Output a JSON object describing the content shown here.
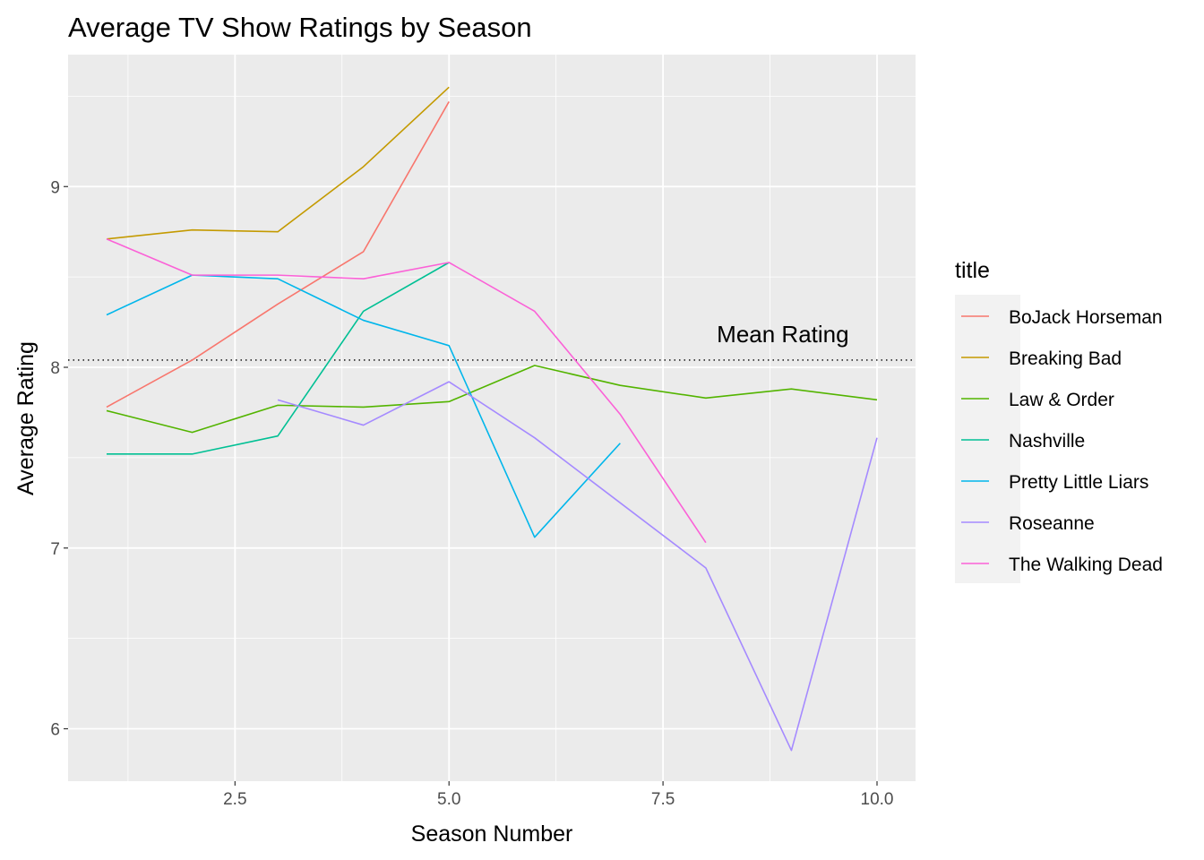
{
  "chart_data": {
    "type": "line",
    "title": "Average TV Show Ratings by Season",
    "xlabel": "Season Number",
    "ylabel": "Average Rating",
    "xlim": [
      0.55,
      10.45
    ],
    "ylim": [
      5.71,
      9.73
    ],
    "x_ticks": [
      2.5,
      5.0,
      7.5,
      10.0
    ],
    "x_tick_labels": [
      "2.5",
      "5.0",
      "7.5",
      "10.0"
    ],
    "x_minor": [
      1.25,
      3.75,
      6.25,
      8.75
    ],
    "y_ticks": [
      6,
      7,
      8,
      9
    ],
    "y_tick_labels": [
      "6",
      "7",
      "8",
      "9"
    ],
    "y_minor": [
      6.5,
      7.5,
      8.5,
      9.5
    ],
    "grid": true,
    "legend_position": "right",
    "legend_title": "title",
    "reference_line": {
      "y": 8.04,
      "style": "dotted",
      "label": "Mean Rating",
      "label_x": 8.9
    },
    "series": [
      {
        "name": "BoJack Horseman",
        "color": "#F8766D",
        "x": [
          1,
          2,
          3,
          4,
          5
        ],
        "y": [
          7.78,
          8.04,
          8.35,
          8.64,
          9.47
        ]
      },
      {
        "name": "Breaking Bad",
        "color": "#C49A00",
        "x": [
          1,
          2,
          3,
          4,
          5
        ],
        "y": [
          8.71,
          8.76,
          8.75,
          9.11,
          9.55
        ]
      },
      {
        "name": "Law & Order",
        "color": "#53B400",
        "x": [
          1,
          2,
          3,
          4,
          5,
          6,
          7,
          8,
          9,
          10
        ],
        "y": [
          7.76,
          7.64,
          7.79,
          7.78,
          7.81,
          8.01,
          7.9,
          7.83,
          7.88,
          7.82
        ]
      },
      {
        "name": "Nashville",
        "color": "#00C094",
        "x": [
          1,
          2,
          3,
          4,
          5
        ],
        "y": [
          7.52,
          7.52,
          7.62,
          8.31,
          8.58
        ]
      },
      {
        "name": "Pretty Little Liars",
        "color": "#00B6EB",
        "x": [
          1,
          2,
          3,
          4,
          5,
          6,
          7
        ],
        "y": [
          8.29,
          8.51,
          8.49,
          8.26,
          8.12,
          7.06,
          7.58
        ]
      },
      {
        "name": "Roseanne",
        "color": "#A58AFF",
        "x": [
          3,
          4,
          5,
          6,
          7,
          8,
          9,
          10
        ],
        "y": [
          7.82,
          7.68,
          7.92,
          7.61,
          7.25,
          6.89,
          5.88,
          7.61
        ]
      },
      {
        "name": "The Walking Dead",
        "color": "#FB61D7",
        "x": [
          1,
          2,
          3,
          4,
          5,
          6,
          7,
          8
        ],
        "y": [
          8.71,
          8.51,
          8.51,
          8.49,
          8.58,
          8.31,
          7.74,
          7.03
        ]
      }
    ]
  }
}
